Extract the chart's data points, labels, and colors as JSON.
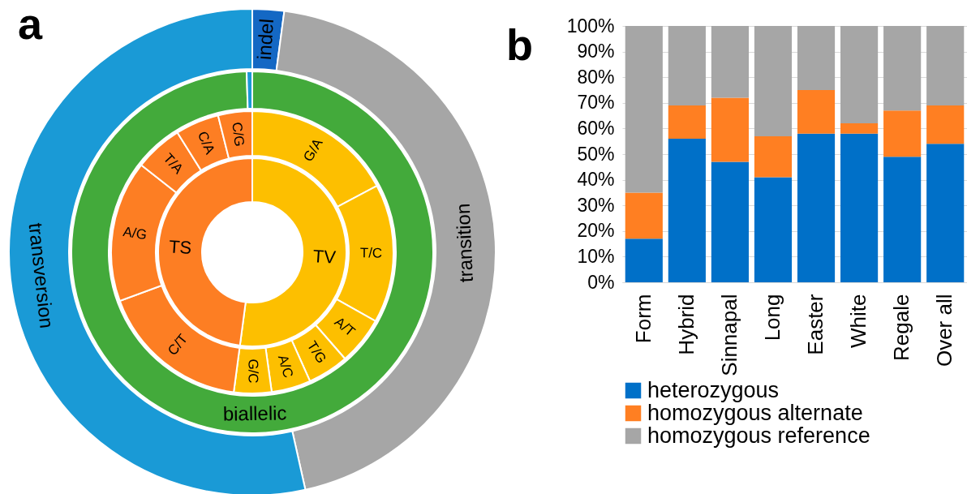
{
  "chart_data": [
    {
      "type": "donut",
      "title": "a",
      "categories": [
        "indel",
        "transition",
        "transversion"
      ],
      "values": [
        2.1,
        44.4,
        53.5
      ],
      "colors": [
        "#1468c4",
        "#a6a6a6",
        "#1a9ad6"
      ]
    },
    {
      "type": "donut",
      "categories": [
        "biallelic",
        null
      ],
      "values": [
        99.5,
        0.5
      ],
      "colors": [
        "#43aa3b",
        "#1a9ad6"
      ]
    },
    {
      "type": "donut",
      "categories": [
        "G/A",
        "T/C",
        "A/T",
        "T/G",
        "A/C",
        "G/C",
        "C/T",
        "A/G",
        "T/A",
        "C/A",
        "C/G"
      ],
      "values": [
        17.2,
        15.9,
        5.5,
        4.7,
        4.5,
        4.3,
        17.3,
        16.2,
        5.5,
        5.0,
        3.9
      ],
      "colors": [
        "#fdbf00",
        "#fdbf00",
        "#fdbf00",
        "#fdbf00",
        "#fdbf00",
        "#fdbf00",
        "#fd7e23",
        "#fd7e23",
        "#fd7e23",
        "#fd7e23",
        "#fd7e23"
      ]
    },
    {
      "type": "donut",
      "categories": [
        "TV",
        "TS"
      ],
      "values": [
        52.1,
        47.9
      ],
      "colors": [
        "#fdbf00",
        "#fd7e23"
      ]
    },
    {
      "type": "bar",
      "title": "b",
      "stacked": true,
      "categories": [
        "Form",
        "Hybrid",
        "Sinnapal",
        "Long",
        "Easter",
        "White",
        "Regale",
        "Over all"
      ],
      "series": [
        {
          "name": "heterozygous",
          "color": "#0070c8",
          "values": [
            17,
            56,
            47,
            41,
            58,
            58,
            49,
            54
          ]
        },
        {
          "name": "homozygous alternate",
          "color": "#ff7f22",
          "values": [
            18,
            13,
            25,
            16,
            17,
            4,
            18,
            15
          ]
        },
        {
          "name": "homozygous reference",
          "color": "#a6a6a6",
          "values": [
            65,
            31,
            28,
            43,
            25,
            38,
            33,
            31
          ]
        }
      ],
      "ylim": [
        0,
        100
      ],
      "yticks": [
        {
          "value": 0,
          "label": "0%"
        },
        {
          "value": 10,
          "label": "10%"
        },
        {
          "value": 20,
          "label": "20%"
        },
        {
          "value": 30,
          "label": "30%"
        },
        {
          "value": 40,
          "label": "40%"
        },
        {
          "value": 50,
          "label": "50%"
        },
        {
          "value": 60,
          "label": "60%"
        },
        {
          "value": 70,
          "label": "70%"
        },
        {
          "value": 80,
          "label": "80%"
        },
        {
          "value": 90,
          "label": "90%"
        },
        {
          "value": 100,
          "label": "100%"
        }
      ],
      "grid": "y",
      "legend": "bottom"
    }
  ]
}
